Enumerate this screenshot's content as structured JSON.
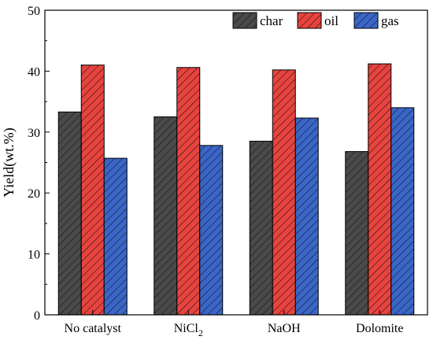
{
  "chart_data": {
    "type": "bar",
    "title": "",
    "xlabel": "",
    "ylabel": "Yield(wt.%)",
    "ylim": [
      0,
      50
    ],
    "yticks": [
      0,
      10,
      20,
      30,
      40,
      50
    ],
    "categories": [
      {
        "label": "No catalyst",
        "sub": ""
      },
      {
        "label": "NiCl",
        "sub": "2"
      },
      {
        "label": "NaOH",
        "sub": ""
      },
      {
        "label": "Dolomite",
        "sub": ""
      }
    ],
    "series": [
      {
        "name": "char",
        "color": "#4a4a4a",
        "values": [
          33.3,
          32.5,
          28.5,
          26.8
        ]
      },
      {
        "name": "oil",
        "color": "#e8433f",
        "values": [
          41.0,
          40.6,
          40.2,
          41.2
        ]
      },
      {
        "name": "gas",
        "color": "#3a66c8",
        "values": [
          25.7,
          27.8,
          32.3,
          34.0
        ]
      }
    ],
    "hatch": "diagonal",
    "legend_position": "top-right",
    "grid": false
  }
}
